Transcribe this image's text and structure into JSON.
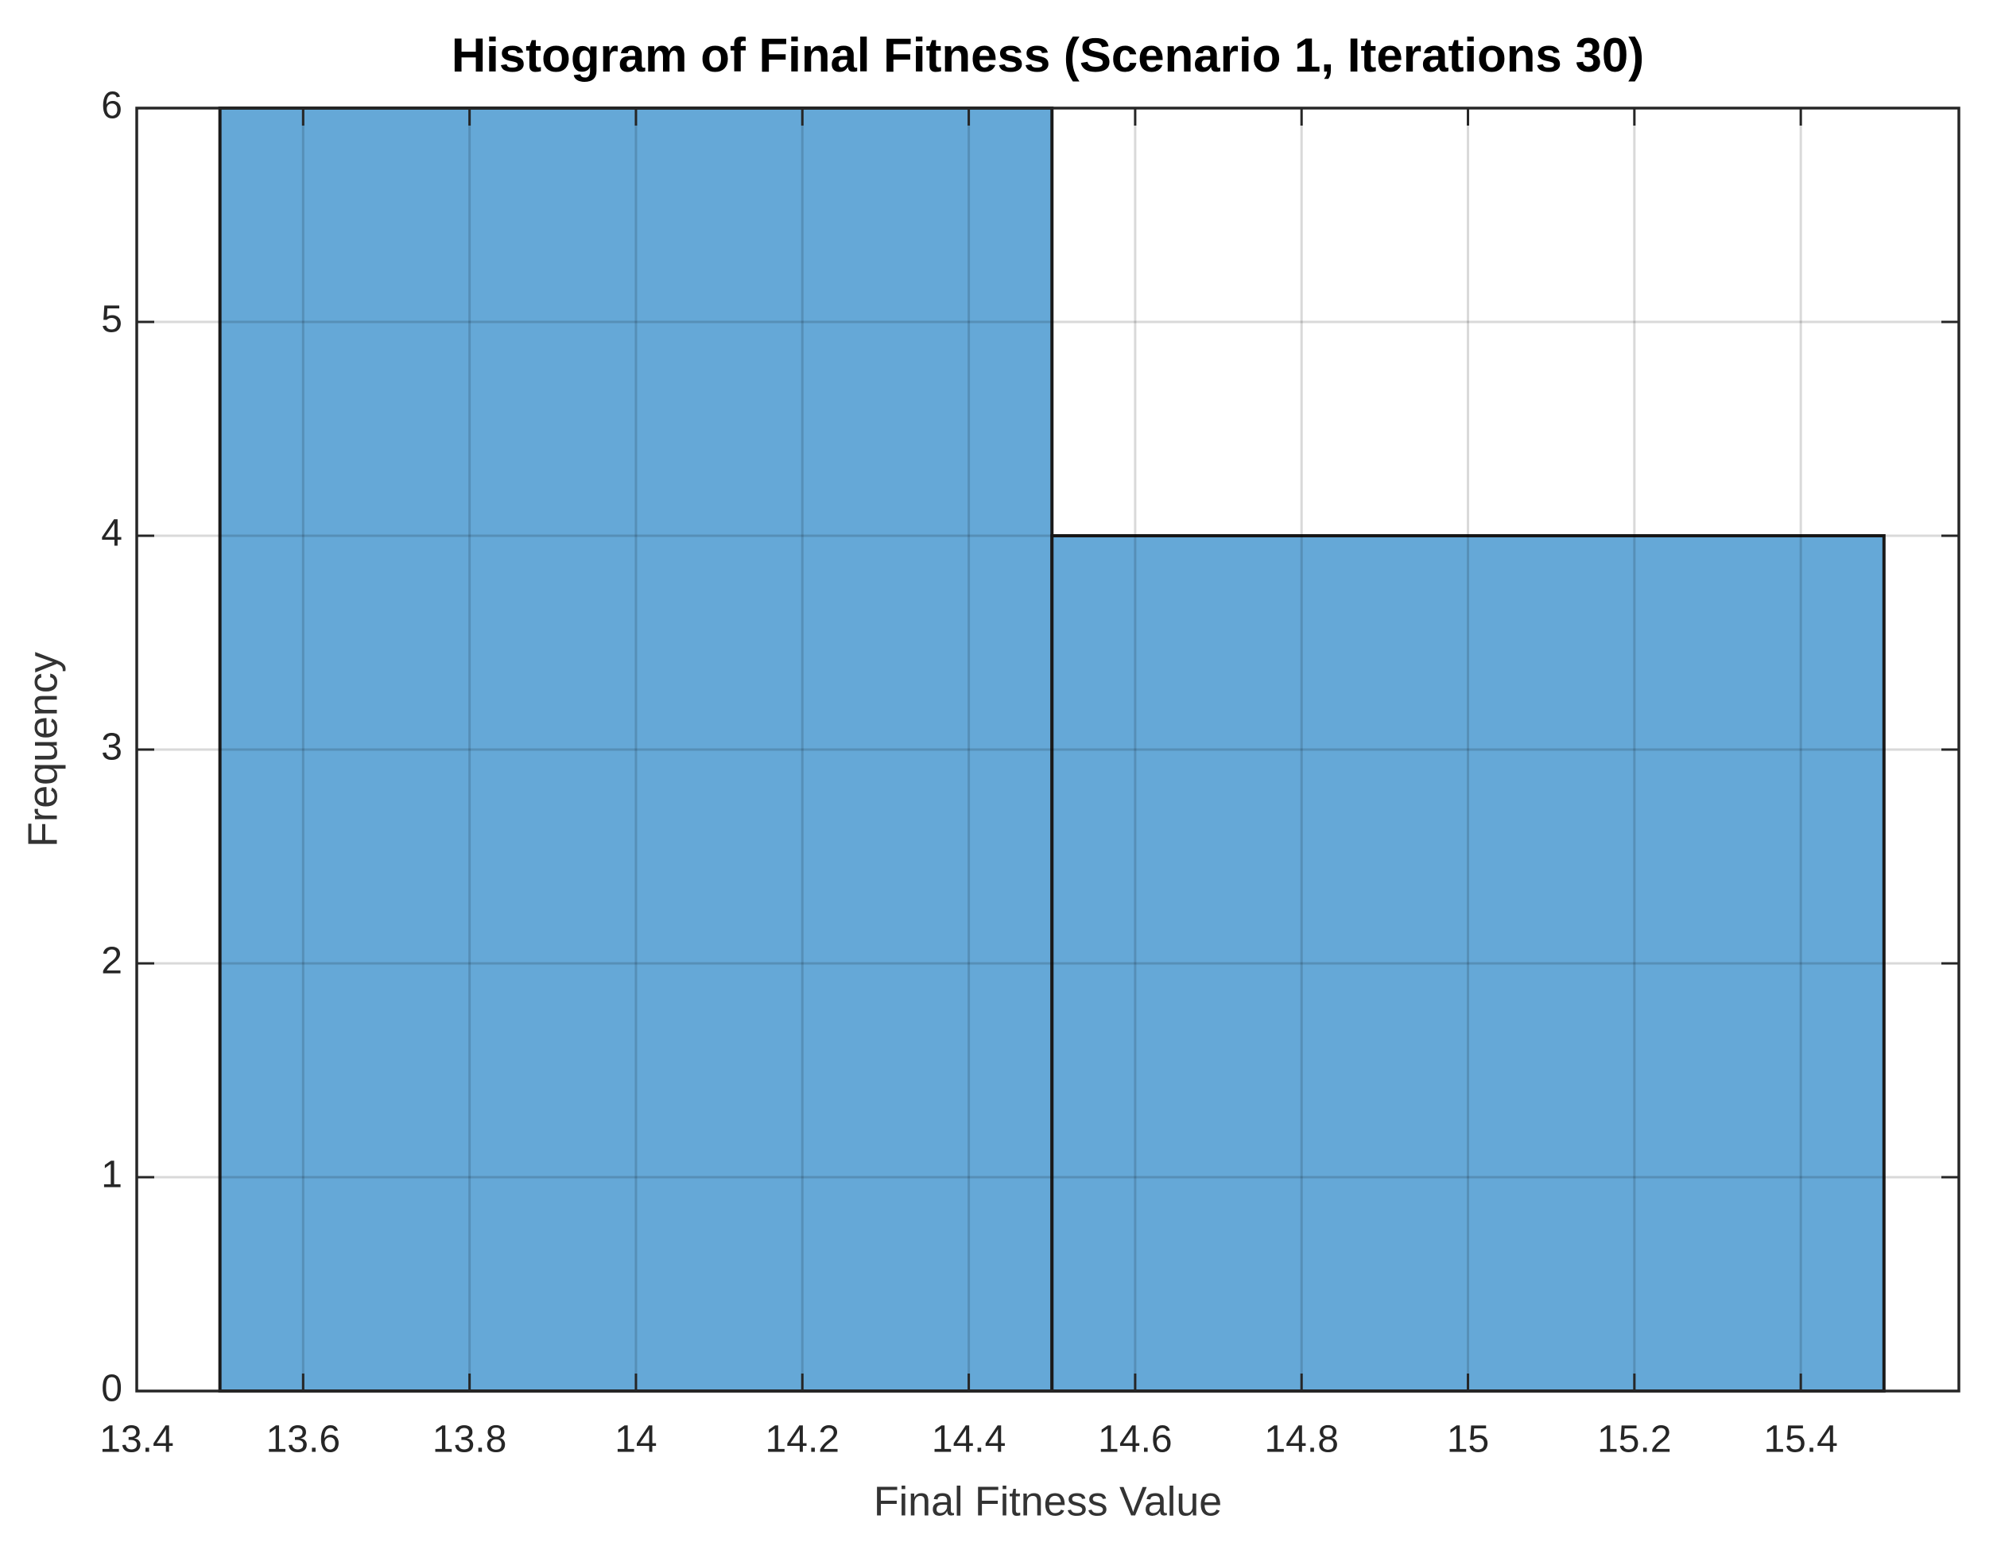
{
  "chart_data": {
    "type": "histogram",
    "title": "Histogram of Final Fitness (Scenario 1, Iterations 30)",
    "xlabel": "Final Fitness Value",
    "ylabel": "Frequency",
    "bins": [
      13.5,
      14.5,
      15.5
    ],
    "values": [
      6,
      4
    ],
    "color": "#65a8d7",
    "edgecolor": "#1a1a1a",
    "xlim": [
      13.4,
      15.59
    ],
    "xticks": [
      13.4,
      13.6,
      13.8,
      14,
      14.2,
      14.4,
      14.6,
      14.8,
      15,
      15.2,
      15.4
    ],
    "ylim": [
      0,
      6
    ],
    "yticks": [
      0,
      1,
      2,
      3,
      4,
      5,
      6
    ],
    "grid": true
  }
}
